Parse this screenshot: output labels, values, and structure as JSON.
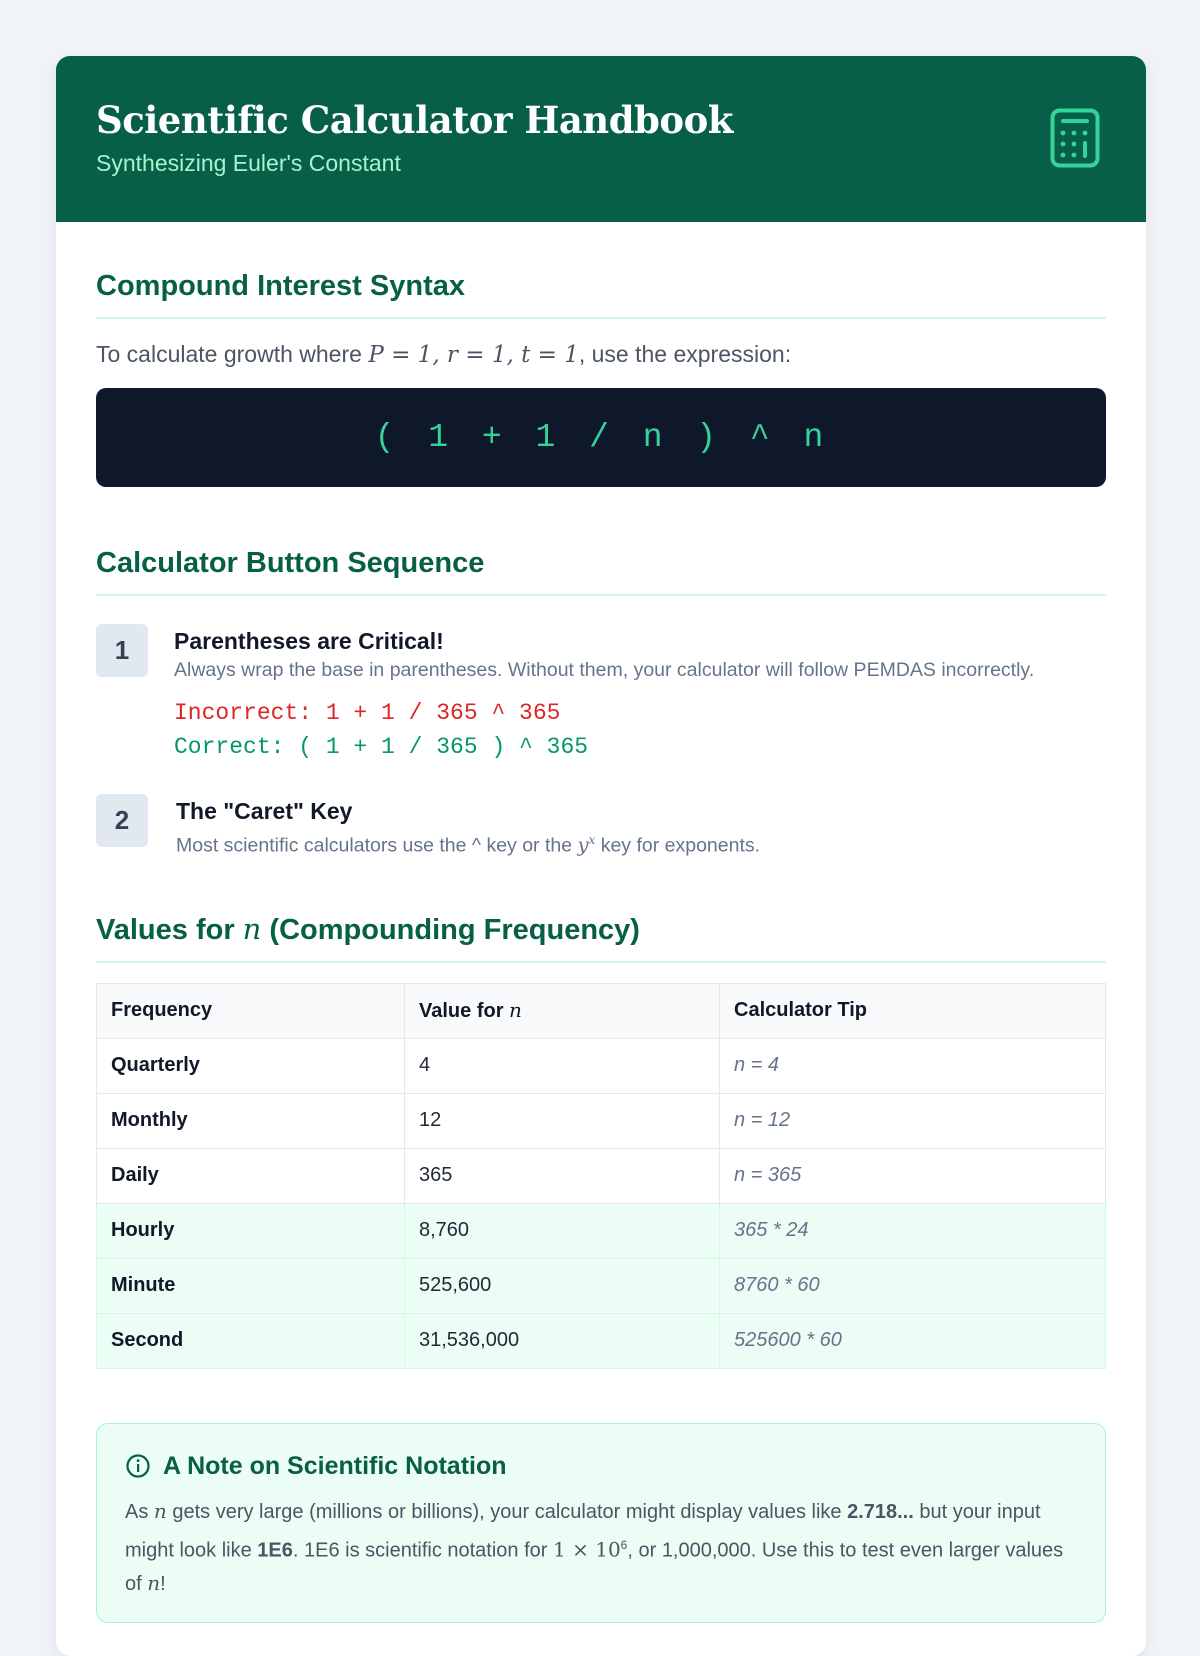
{
  "header": {
    "title": "Scientific Calculator Handbook",
    "subtitle": "Synthesizing Euler's Constant",
    "icon": "calculator-icon"
  },
  "section1": {
    "title": "Compound Interest Syntax",
    "lead_pre": "To calculate growth where ",
    "lead_math": "P = 1, r = 1, t = 1",
    "lead_post": ", use the expression:",
    "expression": "( 1 + 1 / n ) ^ n"
  },
  "section2": {
    "title": "Calculator Button Sequence",
    "steps": [
      {
        "num": "1",
        "title": "Parentheses are Critical!",
        "desc": "Always wrap the base in parentheses. Without them, your calculator will follow PEMDAS incorrectly.",
        "incorrect": "Incorrect: 1 + 1 / 365 ^ 365",
        "correct": "Correct: ( 1 + 1 / 365 ) ^ 365"
      },
      {
        "num": "2",
        "title": "The \"Caret\" Key",
        "desc_pre": "Most scientific calculators use the ^ key or the ",
        "desc_math": "y",
        "desc_sup": "x",
        "desc_post": " key for exponents."
      }
    ]
  },
  "section3": {
    "title_pre": "Values for ",
    "title_math": "n",
    "title_post": " (Compounding Frequency)",
    "columns": [
      "Frequency",
      "Value for ",
      "Calculator Tip"
    ],
    "column2_math": "n",
    "rows": [
      [
        "Quarterly",
        "4",
        "n = 4"
      ],
      [
        "Monthly",
        "12",
        "n = 12"
      ],
      [
        "Daily",
        "365",
        "n = 365"
      ],
      [
        "Hourly",
        "8,760",
        "365 * 24"
      ],
      [
        "Minute",
        "525,600",
        "8760 * 60"
      ],
      [
        "Second",
        "31,536,000",
        "525600 * 60"
      ]
    ]
  },
  "note": {
    "title": "A Note on Scientific Notation",
    "p1": "As ",
    "m1": "n",
    "p2": " gets very large (millions or billions), your calculator might display values like ",
    "b1": "2.718...",
    "p3": " but your input might look like ",
    "b2": "1E6",
    "p4": ". 1E6 is scientific notation for ",
    "m2": "1 × 10",
    "sup": "6",
    "p5": ", or 1,000,000. Use this to test even larger values of ",
    "m3": "n",
    "p6": "!"
  },
  "colors": {
    "brand": "#065f46",
    "accent": "#34d399",
    "incorrect": "#dc2626",
    "correct": "#059669"
  }
}
